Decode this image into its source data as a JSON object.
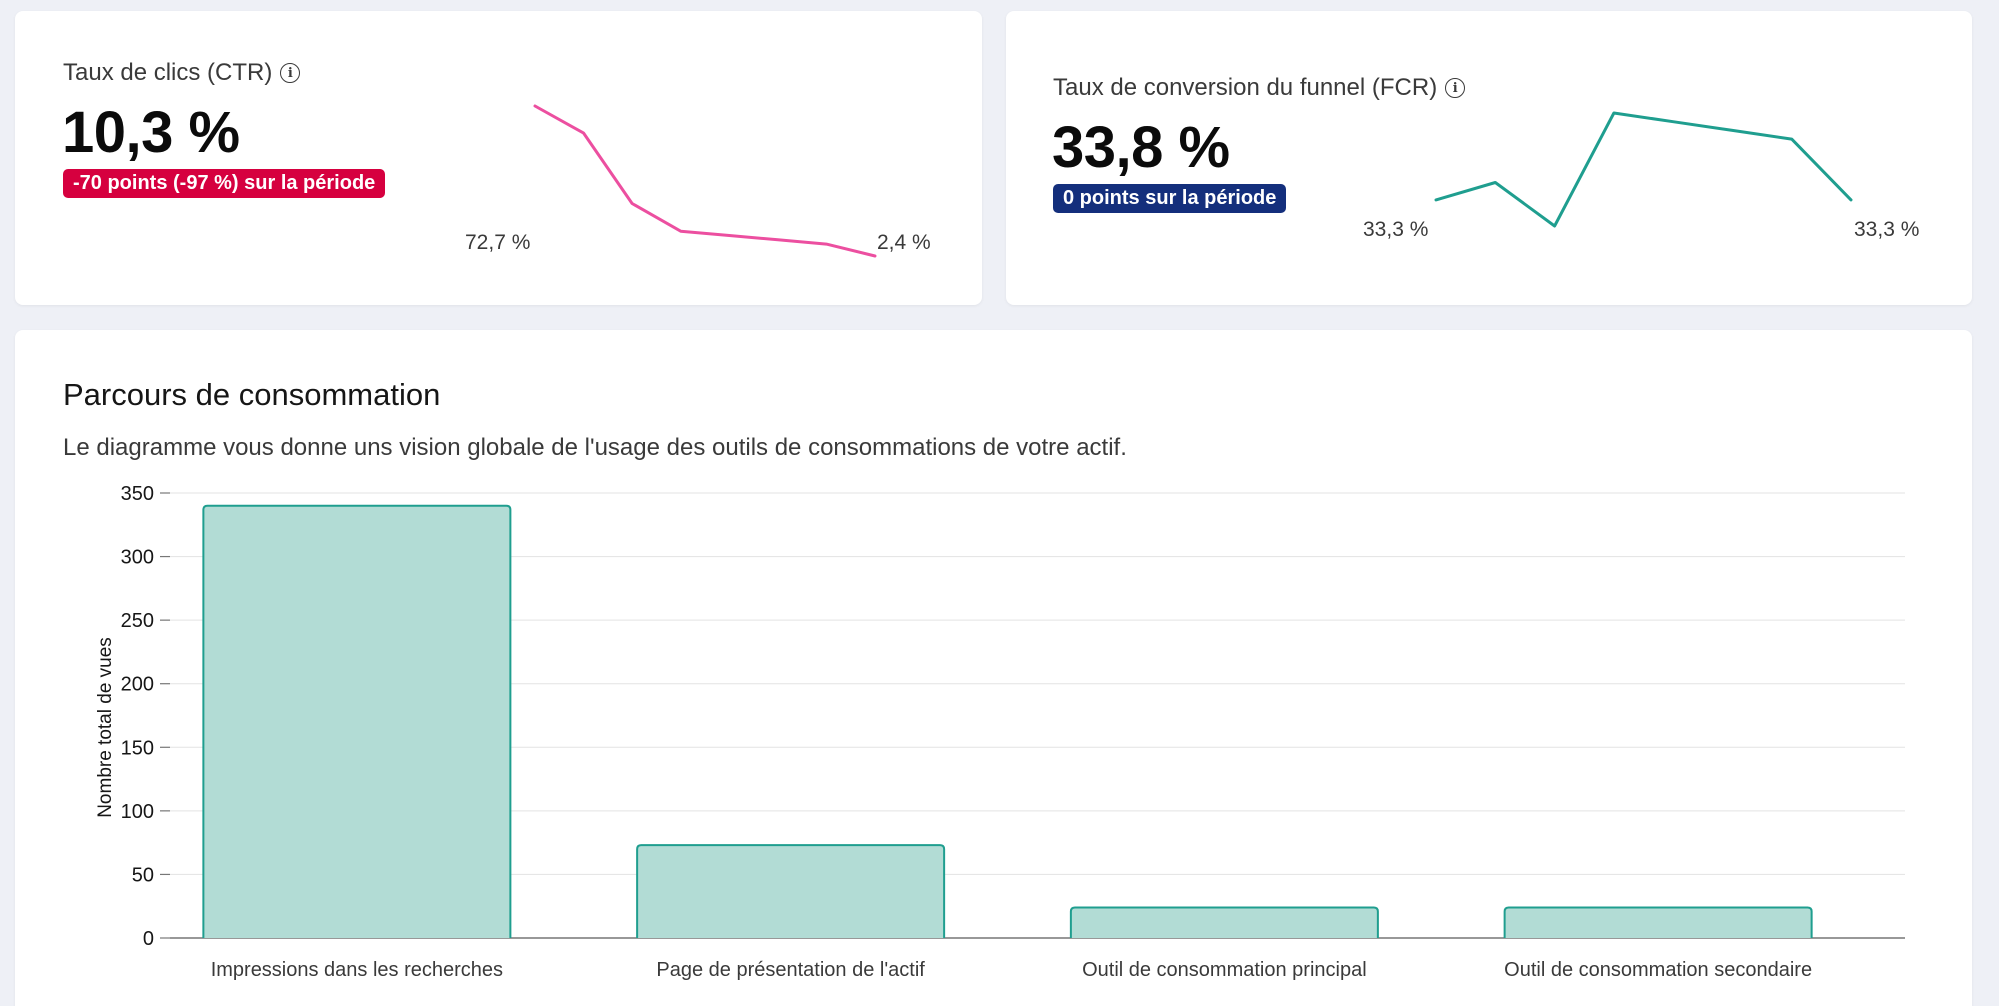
{
  "kpis": [
    {
      "title": "Taux de clics (CTR)",
      "value": "10,3 %",
      "badge": "-70 points (-97 %) sur la période",
      "badge_color": "#d6003f",
      "spark_start_label": "72,7 %",
      "spark_end_label": "2,4 %",
      "spark_color": "#ec4fa0"
    },
    {
      "title": "Taux de conversion du funnel (FCR)",
      "value": "33,8 %",
      "badge": "0 points sur la période",
      "badge_color": "#142f7c",
      "spark_start_label": "33,3 %",
      "spark_end_label": "33,3 %",
      "spark_color": "#1f9e8f"
    }
  ],
  "journey": {
    "title": "Parcours de consommation",
    "description": "Le diagramme vous donne uns vision globale de l'usage des outils de consommations de votre actif."
  },
  "chart_data": [
    {
      "type": "line",
      "values": [
        72.7,
        60.0,
        27.0,
        14.0,
        12.0,
        10.0,
        8.0,
        2.4
      ],
      "start_label": "72,7 %",
      "end_label": "2,4 %",
      "color": "#ec4fa0"
    },
    {
      "type": "line",
      "values": [
        33.3,
        33.5,
        33.0,
        34.3,
        34.2,
        34.1,
        34.0,
        33.3
      ],
      "start_label": "33,3 %",
      "end_label": "33,3 %",
      "color": "#1f9e8f"
    },
    {
      "type": "bar",
      "categories": [
        "Impressions dans les recherches",
        "Page de présentation de l'actif",
        "Outil de consommation principal",
        "Outil de consommation secondaire"
      ],
      "values": [
        340,
        73,
        24,
        24
      ],
      "ylabel": "Nombre total de vues",
      "ylim": [
        0,
        350
      ],
      "yticks": [
        0,
        50,
        100,
        150,
        200,
        250,
        300,
        350
      ],
      "grid": true,
      "bar_fill": "#b2dcd5",
      "bar_stroke": "#1f9e8f"
    }
  ]
}
